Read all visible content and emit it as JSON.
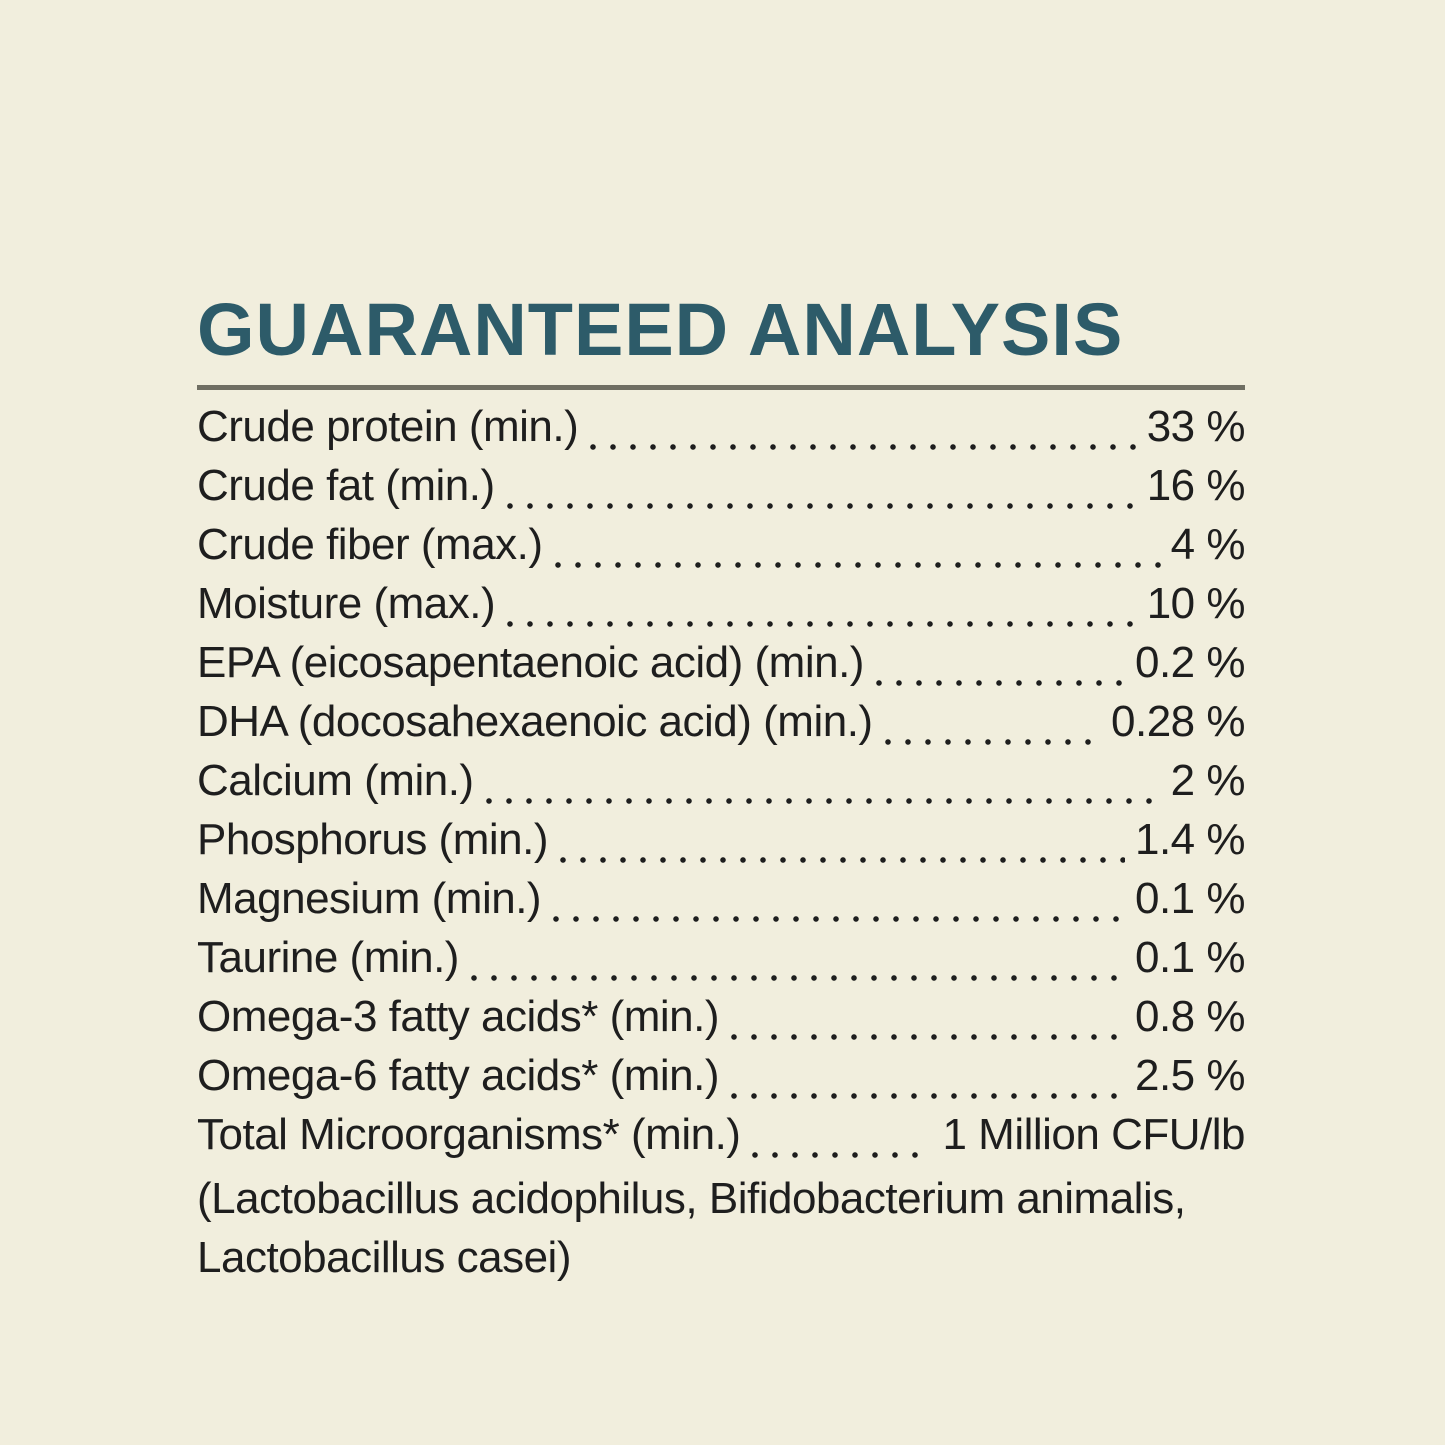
{
  "page": {
    "background_color": "#f1eedd",
    "text_color": "#1e1e1e",
    "heading_color": "#2d5b69",
    "rule_color": "#6f6e62"
  },
  "header": {
    "title": "GUARANTEED ANALYSIS"
  },
  "analysis": {
    "rows": [
      {
        "label": "Crude protein (min.)",
        "value": "33 %"
      },
      {
        "label": "Crude fat (min.)",
        "value": "16 %"
      },
      {
        "label": "Crude fiber (max.)",
        "value": "4 %"
      },
      {
        "label": "Moisture (max.)",
        "value": "10 %"
      },
      {
        "label": "EPA (eicosapentaenoic acid) (min.)",
        "value": "0.2 %"
      },
      {
        "label": "DHA (docosahexaenoic acid) (min.)",
        "value": "0.28 %"
      },
      {
        "label": "Calcium (min.)",
        "value": "2 %"
      },
      {
        "label": "Phosphorus (min.)",
        "value": "1.4 %"
      },
      {
        "label": "Magnesium (min.)",
        "value": "0.1 %"
      },
      {
        "label": "Taurine (min.)",
        "value": "0.1 %"
      },
      {
        "label": "Omega-3 fatty acids* (min.)",
        "value": "0.8 %"
      },
      {
        "label": "Omega-6 fatty acids* (min.)",
        "value": "2.5 %"
      },
      {
        "label": "Total Microorganisms* (min.)",
        "value": "1 Million CFU/lb"
      }
    ],
    "footnote_lines": [
      "(Lactobacillus acidophilus, Bifidobacterium animalis,",
      "Lactobacillus casei)"
    ]
  }
}
